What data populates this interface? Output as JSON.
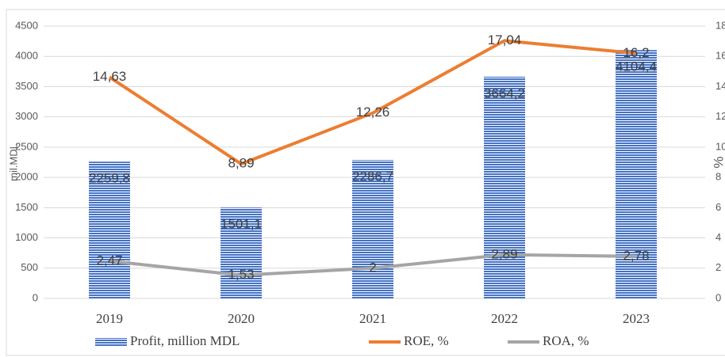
{
  "chart_data": {
    "type": "bar",
    "categories": [
      "2019",
      "2020",
      "2021",
      "2022",
      "2023"
    ],
    "y_label": "mil.MDL",
    "y2_label": "%",
    "ylim": [
      0,
      4500
    ],
    "yticks": [
      0,
      500,
      1000,
      1500,
      2000,
      2500,
      3000,
      3500,
      4000,
      4500
    ],
    "y2lim": [
      0,
      18
    ],
    "y2ticks": [
      0,
      2,
      4,
      6,
      8,
      10,
      12,
      14,
      16,
      18
    ],
    "legend": "bottom",
    "series": [
      {
        "name": "Profit, million MDL",
        "color": "#4472c4",
        "values": [
          2259.8,
          1501.1,
          2286.7,
          3664.2,
          4104.4
        ],
        "value_labels": [
          "2259,8",
          "1501,1",
          "2286,7",
          "3664,2",
          "4104,4"
        ]
      },
      {
        "name": "ROE, %",
        "color": "#ed7d31",
        "axis": "y2",
        "values": [
          14.63,
          8.89,
          12.26,
          17.04,
          16.2
        ],
        "value_labels": [
          "14,63",
          "8,89",
          "12,26",
          "17,04",
          "16,2"
        ]
      },
      {
        "name": "ROA, %",
        "color": "#a5a5a5",
        "axis": "y2",
        "values": [
          2.47,
          1.53,
          2,
          2.89,
          2.78
        ],
        "value_labels": [
          "2,47",
          "1,53",
          "2",
          "2,89",
          "2,78"
        ]
      }
    ]
  }
}
